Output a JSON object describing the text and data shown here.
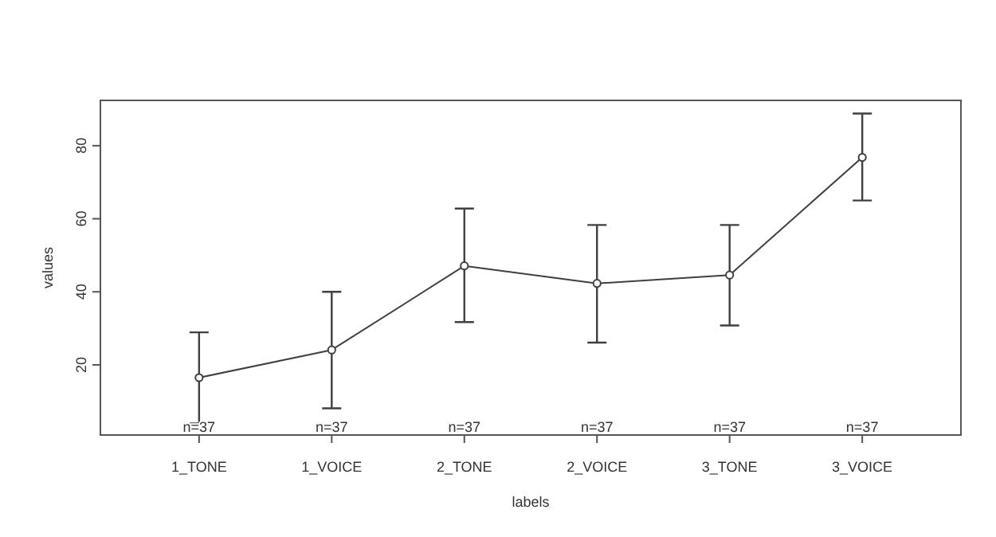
{
  "chart_data": {
    "type": "line",
    "xlabel": "labels",
    "ylabel": "values",
    "categories": [
      "1_TONE",
      "1_VOICE",
      "2_TONE",
      "2_VOICE",
      "3_TONE",
      "3_VOICE"
    ],
    "series": [
      {
        "color": "#404040",
        "values": [
          16.5,
          24.1,
          47.1,
          42.3,
          44.6,
          76.8
        ],
        "errors": [
          [
            4,
            28.9
          ],
          [
            8.1,
            40
          ],
          [
            31.7,
            62.8
          ],
          [
            26.1,
            58.3
          ],
          [
            30.8,
            58.3
          ],
          [
            65,
            88.8
          ]
        ]
      }
    ],
    "ylim": [
      0.8,
      92.4
    ],
    "yticks": [
      20,
      40,
      60,
      80
    ],
    "grid": false,
    "marker": "circle",
    "line_style": "solid",
    "annotations": [
      "n=37",
      "n=37",
      "n=37",
      "n=37",
      "n=37",
      "n=37"
    ]
  }
}
